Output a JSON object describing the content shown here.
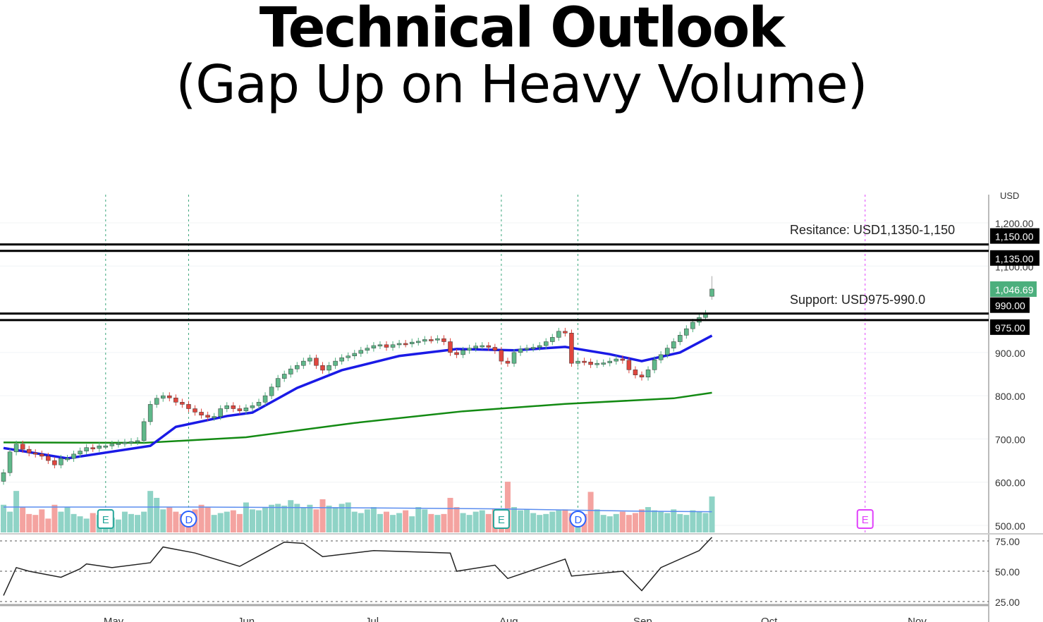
{
  "title": {
    "line1": "Technical Outlook",
    "line2": "(Gap Up on Heavy Volume)"
  },
  "chart_data": {
    "type": "candlestick",
    "currency": "USD",
    "annotations": {
      "resistance": "Resitance: USD1,1350-1,150",
      "support": "Support: USD975-990.0"
    },
    "horizontal_levels": [
      {
        "value": 1150,
        "label": "1,150.00"
      },
      {
        "value": 1135,
        "label": "1,135.00"
      },
      {
        "value": 990,
        "label": "990.00"
      },
      {
        "value": 975,
        "label": "975.00"
      }
    ],
    "last_price": {
      "value": 1046.69,
      "label": "1,046.69"
    },
    "price_ticks": [
      {
        "v": 1200,
        "l": "1,200.00"
      },
      {
        "v": 1100,
        "l": "1,100.00"
      },
      {
        "v": 900,
        "l": "900.00"
      },
      {
        "v": 800,
        "l": "800.00"
      },
      {
        "v": 700,
        "l": "700.00"
      },
      {
        "v": 600,
        "l": "600.00"
      },
      {
        "v": 500,
        "l": "500.00"
      }
    ],
    "ylim": [
      500,
      1200
    ],
    "x_labels": [
      {
        "i": 17,
        "l": "May"
      },
      {
        "i": 38,
        "l": "Jun"
      },
      {
        "i": 58,
        "l": "Jul"
      },
      {
        "i": 79,
        "l": "Aug"
      },
      {
        "i": 100,
        "l": "Sep"
      },
      {
        "i": 120,
        "l": "Oct"
      },
      {
        "i": 143,
        "l": "Nov"
      }
    ],
    "closes": [
      622,
      670,
      688,
      676,
      668,
      665,
      660,
      650,
      640,
      655,
      655,
      665,
      672,
      680,
      678,
      684,
      684,
      688,
      690,
      692,
      694,
      696,
      740,
      780,
      794,
      800,
      795,
      785,
      780,
      770,
      762,
      755,
      750,
      752,
      770,
      777,
      770,
      765,
      772,
      777,
      785,
      800,
      820,
      840,
      850,
      862,
      870,
      880,
      887,
      870,
      859,
      870,
      880,
      888,
      892,
      898,
      905,
      910,
      916,
      918,
      912,
      918,
      921,
      920,
      924,
      926,
      930,
      929,
      932,
      925,
      900,
      895,
      905,
      910,
      915,
      916,
      912,
      905,
      880,
      875,
      900,
      908,
      910,
      912,
      916,
      925,
      935,
      949,
      945,
      875,
      880,
      878,
      872,
      875,
      876,
      880,
      885,
      882,
      860,
      848,
      843,
      860,
      883,
      895,
      910,
      925,
      940,
      955,
      970,
      981,
      990,
      1046.69
    ],
    "last_open": 1030,
    "volume": [
      60,
      45,
      90,
      55,
      40,
      38,
      50,
      30,
      60,
      45,
      55,
      40,
      35,
      30,
      42,
      38,
      40,
      32,
      28,
      45,
      40,
      38,
      45,
      90,
      75,
      50,
      55,
      45,
      40,
      35,
      50,
      60,
      55,
      38,
      42,
      45,
      48,
      40,
      65,
      50,
      48,
      55,
      60,
      62,
      58,
      70,
      62,
      55,
      60,
      50,
      72,
      58,
      55,
      62,
      65,
      45,
      42,
      50,
      55,
      40,
      45,
      38,
      42,
      48,
      35,
      55,
      50,
      40,
      38,
      40,
      75,
      55,
      42,
      38,
      45,
      48,
      40,
      52,
      50,
      110,
      55,
      48,
      50,
      42,
      38,
      40,
      45,
      48,
      50,
      42,
      45,
      40,
      88,
      50,
      38,
      35,
      40,
      45,
      38,
      42,
      50,
      55,
      48,
      45,
      42,
      50,
      40,
      38,
      48,
      45,
      42,
      78
    ],
    "volume_ma": [
      [
        0,
        55
      ],
      [
        30,
        55
      ],
      [
        60,
        53
      ],
      [
        78,
        51
      ],
      [
        100,
        46
      ],
      [
        111,
        45
      ]
    ],
    "ema": [
      [
        0,
        679
      ],
      [
        10,
        655
      ],
      [
        23,
        684
      ],
      [
        27,
        728
      ],
      [
        35,
        753
      ],
      [
        39,
        761
      ],
      [
        46,
        818
      ],
      [
        53,
        859
      ],
      [
        62,
        892
      ],
      [
        71,
        908
      ],
      [
        80,
        905
      ],
      [
        88,
        913
      ],
      [
        95,
        896
      ],
      [
        100,
        880
      ],
      [
        106,
        900
      ],
      [
        111,
        939
      ]
    ],
    "sma": [
      [
        0,
        692
      ],
      [
        22,
        691
      ],
      [
        38,
        704
      ],
      [
        55,
        737
      ],
      [
        72,
        764
      ],
      [
        88,
        781
      ],
      [
        105,
        794
      ],
      [
        111,
        807
      ]
    ],
    "rsi_ticks": [
      {
        "v": 75,
        "l": "75.00"
      },
      {
        "v": 50,
        "l": "50.00"
      },
      {
        "v": 25,
        "l": "25.00"
      }
    ],
    "rsi": [
      [
        0,
        30
      ],
      [
        2,
        53
      ],
      [
        4,
        50
      ],
      [
        9,
        45
      ],
      [
        12,
        52
      ],
      [
        13,
        56
      ],
      [
        17,
        53
      ],
      [
        23,
        57
      ],
      [
        25,
        70
      ],
      [
        30,
        65
      ],
      [
        37,
        54
      ],
      [
        44,
        74
      ],
      [
        47,
        73
      ],
      [
        50,
        62
      ],
      [
        58,
        67
      ],
      [
        70,
        65
      ],
      [
        71,
        50
      ],
      [
        77,
        55
      ],
      [
        79,
        44
      ],
      [
        88,
        60
      ],
      [
        89,
        46
      ],
      [
        97,
        50
      ],
      [
        100,
        34
      ],
      [
        103,
        53
      ],
      [
        109,
        67
      ],
      [
        111,
        78
      ]
    ],
    "events": [
      {
        "i": 16,
        "l": "E"
      },
      {
        "i": 29,
        "l": "D"
      },
      {
        "i": 78,
        "l": "E"
      },
      {
        "i": 90,
        "l": "D"
      },
      {
        "i": 135,
        "l": "E"
      }
    ]
  }
}
